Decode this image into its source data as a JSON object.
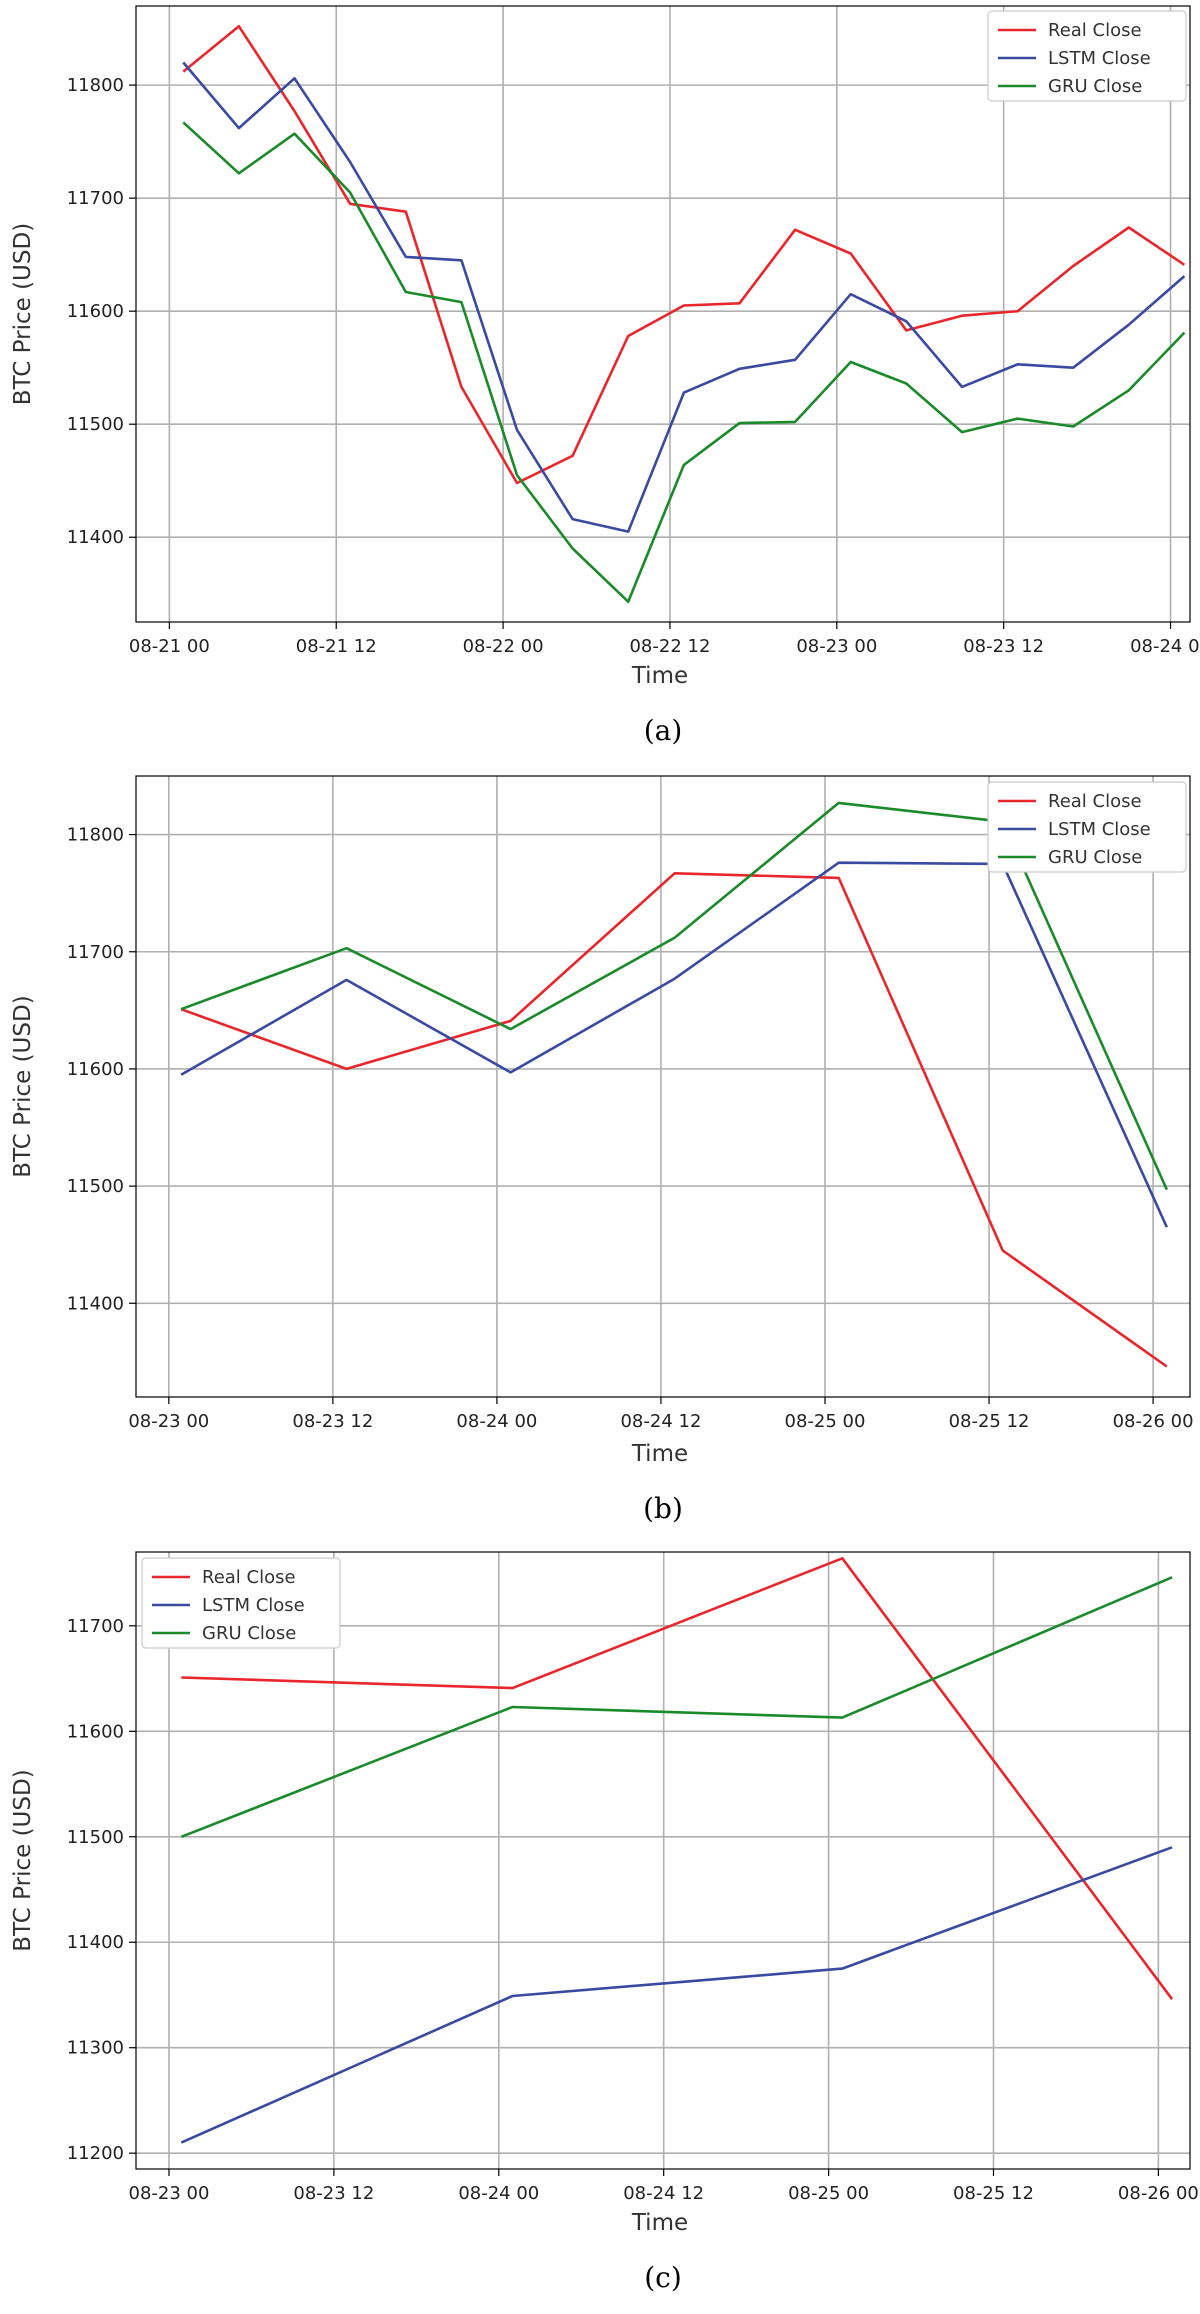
{
  "chart_data": [
    {
      "type": "line",
      "caption": "(a)",
      "xlabel": "Time",
      "ylabel": "BTC Price (USD)",
      "x_ticks": [
        "08-21 00",
        "08-21 12",
        "08-22 00",
        "08-22 12",
        "08-23 00",
        "08-23 12",
        "08-24 00"
      ],
      "x_tick_hours": [
        0,
        12,
        24,
        36,
        48,
        60,
        72
      ],
      "x_range_hours": [
        -2.4,
        73.4
      ],
      "y_ticks": [
        11400,
        11500,
        11600,
        11700,
        11800
      ],
      "ylim": [
        11325,
        11870
      ],
      "legend_position": "top-right",
      "x_hours": [
        1,
        5,
        9,
        13,
        17,
        21,
        25,
        29,
        33,
        37,
        41,
        45,
        49,
        53,
        57,
        61,
        65,
        69,
        73
      ],
      "series": [
        {
          "name": "Real Close",
          "color": "#e8262b",
          "values": [
            11812,
            11852,
            11777,
            11695,
            11688,
            11533,
            11448,
            11472,
            11578,
            11605,
            11607,
            11672,
            11651,
            11583,
            11596,
            11600,
            11640,
            11674,
            11641
          ]
        },
        {
          "name": "LSTM Close",
          "color": "#3a4aa0",
          "values": [
            11820,
            11762,
            11806,
            11732,
            11648,
            11645,
            11495,
            11416,
            11405,
            11528,
            11549,
            11557,
            11615,
            11591,
            11533,
            11553,
            11550,
            11588,
            11631
          ]
        },
        {
          "name": "GRU Close",
          "color": "#1a8a2a",
          "values": [
            11767,
            11722,
            11757,
            11705,
            11617,
            11608,
            11455,
            11390,
            11343,
            11464,
            11501,
            11502,
            11555,
            11536,
            11493,
            11505,
            11498,
            11530,
            11581
          ]
        }
      ]
    },
    {
      "type": "line",
      "caption": "(b)",
      "xlabel": "Time",
      "ylabel": "BTC Price (USD)",
      "x_ticks": [
        "08-23 00",
        "08-23 12",
        "08-24 00",
        "08-24 12",
        "08-25 00",
        "08-25 12",
        "08-26 00"
      ],
      "x_tick_hours": [
        0,
        12,
        24,
        36,
        48,
        60,
        72
      ],
      "x_range_hours": [
        -2.4,
        74.7
      ],
      "y_ticks": [
        11400,
        11500,
        11600,
        11700,
        11800
      ],
      "ylim": [
        11320,
        11850
      ],
      "legend_position": "top-right",
      "x_hours": [
        0.9,
        13,
        25,
        37,
        49,
        61,
        73
      ],
      "series": [
        {
          "name": "Real Close",
          "color": "#e8262b",
          "values": [
            11651,
            11600,
            11641,
            11767,
            11763,
            11445,
            11346
          ]
        },
        {
          "name": "LSTM Close",
          "color": "#3a4aa0",
          "values": [
            11595,
            11676,
            11597,
            11677,
            11776,
            11775,
            11465
          ]
        },
        {
          "name": "GRU Close",
          "color": "#1a8a2a",
          "values": [
            11651,
            11703,
            11634,
            11712,
            11827,
            11811,
            11497
          ]
        }
      ]
    },
    {
      "type": "line",
      "caption": "(c)",
      "xlabel": "Time",
      "ylabel": "BTC Price (USD)",
      "x_ticks": [
        "08-23 00",
        "08-23 12",
        "08-24 00",
        "08-24 12",
        "08-25 00",
        "08-25 12",
        "08-26 00"
      ],
      "x_tick_hours": [
        0,
        12,
        24,
        36,
        48,
        60,
        72
      ],
      "x_range_hours": [
        -2.4,
        74.3
      ],
      "y_ticks": [
        11200,
        11300,
        11400,
        11500,
        11600,
        11700
      ],
      "ylim": [
        11185,
        11770
      ],
      "legend_position": "top-left",
      "x_hours": [
        0.9,
        25,
        49,
        73
      ],
      "series": [
        {
          "name": "Real Close",
          "color": "#e8262b",
          "values": [
            11651,
            11641,
            11764,
            11346
          ]
        },
        {
          "name": "LSTM Close",
          "color": "#3a4aa0",
          "values": [
            11210,
            11349,
            11375,
            11490
          ]
        },
        {
          "name": "GRU Close",
          "color": "#1a8a2a",
          "values": [
            11500,
            11623,
            11613,
            11746
          ]
        }
      ]
    }
  ]
}
